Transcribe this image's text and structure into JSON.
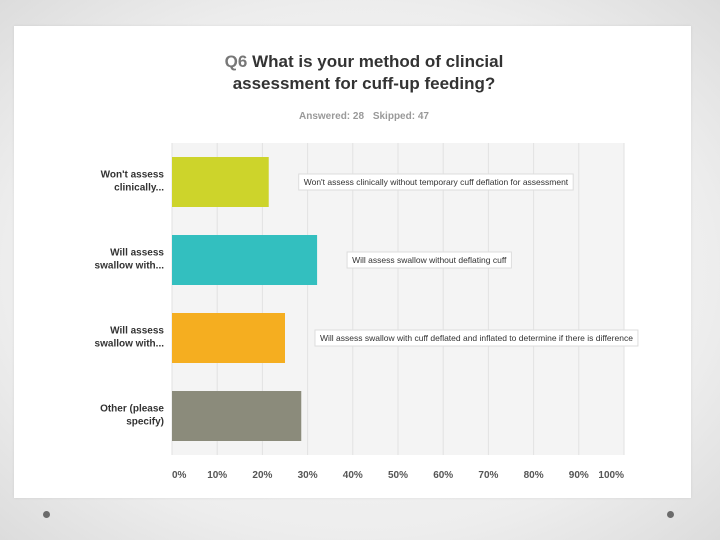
{
  "question": {
    "number": "Q6",
    "line1": "What is your method of clincial",
    "line2": "assessment for cuff-up feeding?"
  },
  "stats": {
    "answered": "Answered: 28",
    "skipped": "Skipped: 47"
  },
  "chart_data": {
    "type": "bar",
    "orientation": "horizontal",
    "title": "Q6 What is your method of clincial assessment for cuff-up feeding?",
    "categories": [
      [
        "Won't assess",
        "clinically..."
      ],
      [
        "Will assess",
        "swallow with..."
      ],
      [
        "Will assess",
        "swallow with..."
      ],
      [
        "Other (please",
        "specify)"
      ]
    ],
    "values": [
      21.4,
      32.1,
      25.0,
      28.6
    ],
    "colors": [
      "#cdd42b",
      "#33bfbf",
      "#f5ae20",
      "#8b8b7b"
    ],
    "annotations": [
      "Won't assess clinically without temporary cuff deflation for assessment",
      "Will assess swallow without deflating cuff",
      "Will assess swallow with cuff deflated and inflated to determine if there is difference",
      ""
    ],
    "xlim": [
      0,
      100
    ],
    "xticks": [
      "0%",
      "10%",
      "20%",
      "30%",
      "40%",
      "50%",
      "60%",
      "70%",
      "80%",
      "90%",
      "100%"
    ],
    "grid": true,
    "xlabel": "",
    "ylabel": ""
  }
}
